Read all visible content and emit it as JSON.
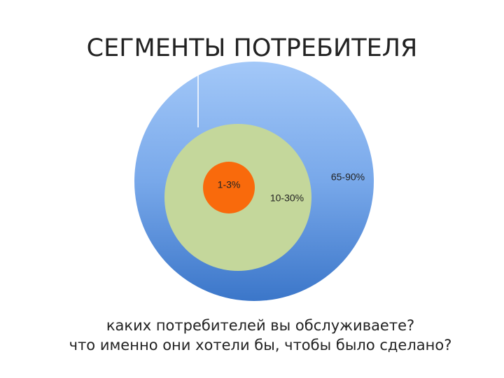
{
  "title": "СЕГМЕНТЫ ПОТРЕБИТЕЛЯ",
  "segments": {
    "inner": "1-3%",
    "middle": "10-30%",
    "outer": "65-90%"
  },
  "questions": [
    "каких потребителей вы обслуживаете?",
    "что именно они хотели бы, чтобы было сделано?"
  ]
}
